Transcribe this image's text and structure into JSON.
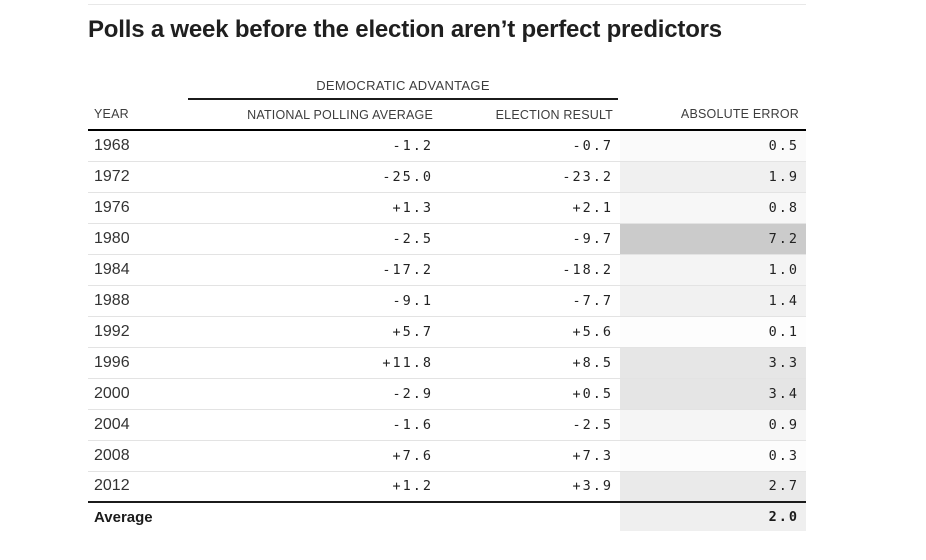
{
  "title": "Polls a week before the election aren’t perfect predictors",
  "table": {
    "group_header": "DEMOCRATIC ADVANTAGE",
    "columns": {
      "year": "YEAR",
      "poll": "NATIONAL POLLING AVERAGE",
      "result": "ELECTION RESULT",
      "error": "ABSOLUTE ERROR"
    },
    "rows": [
      {
        "year": "1968",
        "poll": "-1.2",
        "result": "-0.7",
        "error": "0.5",
        "error_color": "#fafafa"
      },
      {
        "year": "1972",
        "poll": "-25.0",
        "result": "-23.2",
        "error": "1.9",
        "error_color": "#f0f0f0"
      },
      {
        "year": "1976",
        "poll": "+1.3",
        "result": "+2.1",
        "error": "0.8",
        "error_color": "#f7f7f7"
      },
      {
        "year": "1980",
        "poll": "-2.5",
        "result": "-9.7",
        "error": "7.2",
        "error_color": "#cbcbcb"
      },
      {
        "year": "1984",
        "poll": "-17.2",
        "result": "-18.2",
        "error": "1.0",
        "error_color": "#f4f4f4"
      },
      {
        "year": "1988",
        "poll": "-9.1",
        "result": "-7.7",
        "error": "1.4",
        "error_color": "#f1f1f1"
      },
      {
        "year": "1992",
        "poll": "+5.7",
        "result": "+5.6",
        "error": "0.1",
        "error_color": "#fdfdfd"
      },
      {
        "year": "1996",
        "poll": "+11.8",
        "result": "+8.5",
        "error": "3.3",
        "error_color": "#e6e6e6"
      },
      {
        "year": "2000",
        "poll": "-2.9",
        "result": "+0.5",
        "error": "3.4",
        "error_color": "#e5e5e5"
      },
      {
        "year": "2004",
        "poll": "-1.6",
        "result": "-2.5",
        "error": "0.9",
        "error_color": "#f5f5f5"
      },
      {
        "year": "2008",
        "poll": "+7.6",
        "result": "+7.3",
        "error": "0.3",
        "error_color": "#fcfcfc"
      },
      {
        "year": "2012",
        "poll": "+1.2",
        "result": "+3.9",
        "error": "2.7",
        "error_color": "#eaeaea"
      }
    ],
    "footer": {
      "label": "Average",
      "error": "2.0",
      "error_color": "#efefef"
    }
  },
  "colors": {
    "title_text": "#1f1f1f",
    "header_text": "#3d3d3d",
    "body_text": "#222222",
    "row_divider": "#e3e3e3",
    "strong_divider": "#1b1b1b",
    "top_rule": "#e8e8e8",
    "error_shade_max": "#cbcbcb"
  },
  "chart_data": {
    "type": "table",
    "title": "Polls a week before the election aren’t perfect predictors",
    "group_header": "DEMOCRATIC ADVANTAGE (spans polling average and election result columns)",
    "columns": [
      "YEAR",
      "NATIONAL POLLING AVERAGE",
      "ELECTION RESULT",
      "ABSOLUTE ERROR"
    ],
    "years": [
      1968,
      1972,
      1976,
      1980,
      1984,
      1988,
      1992,
      1996,
      2000,
      2004,
      2008,
      2012
    ],
    "national_polling_average": [
      -1.2,
      -25.0,
      1.3,
      -2.5,
      -17.2,
      -9.1,
      5.7,
      11.8,
      -2.9,
      -1.6,
      7.6,
      1.2
    ],
    "election_result": [
      -0.7,
      -23.2,
      2.1,
      -9.7,
      -18.2,
      -7.7,
      5.6,
      8.5,
      0.5,
      -2.5,
      7.3,
      3.9
    ],
    "absolute_error": [
      0.5,
      1.9,
      0.8,
      7.2,
      1.0,
      1.4,
      0.1,
      3.3,
      3.4,
      0.9,
      0.3,
      2.7
    ],
    "average_absolute_error": 2.0,
    "layout_hints": "absolute-error cells shaded white→gray proportional to value; grid lines between rows; heavy rule under header and above average row"
  }
}
